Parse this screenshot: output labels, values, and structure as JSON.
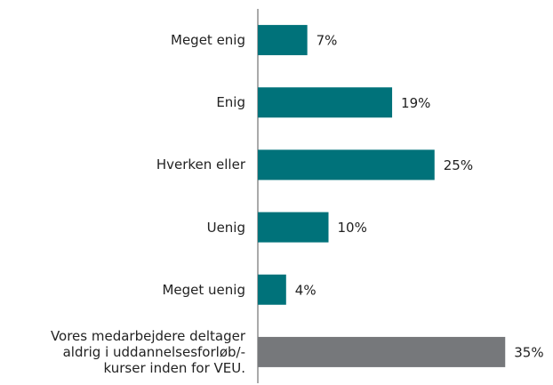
{
  "chart_data": {
    "type": "hbar",
    "categories": [
      "Meget enig",
      "Enig",
      "Hverken eller",
      "Uenig",
      "Meget uenig",
      "Vores medarbejdere deltager\naldrig i uddannelsesforløb/-\nkurser inden for VEU."
    ],
    "values": [
      7,
      19,
      25,
      10,
      4,
      35
    ],
    "value_labels": [
      "7%",
      "19%",
      "25%",
      "10%",
      "4%",
      "35%"
    ],
    "colors": [
      "#00727a",
      "#00727a",
      "#00727a",
      "#00727a",
      "#00727a",
      "#76787b"
    ]
  }
}
